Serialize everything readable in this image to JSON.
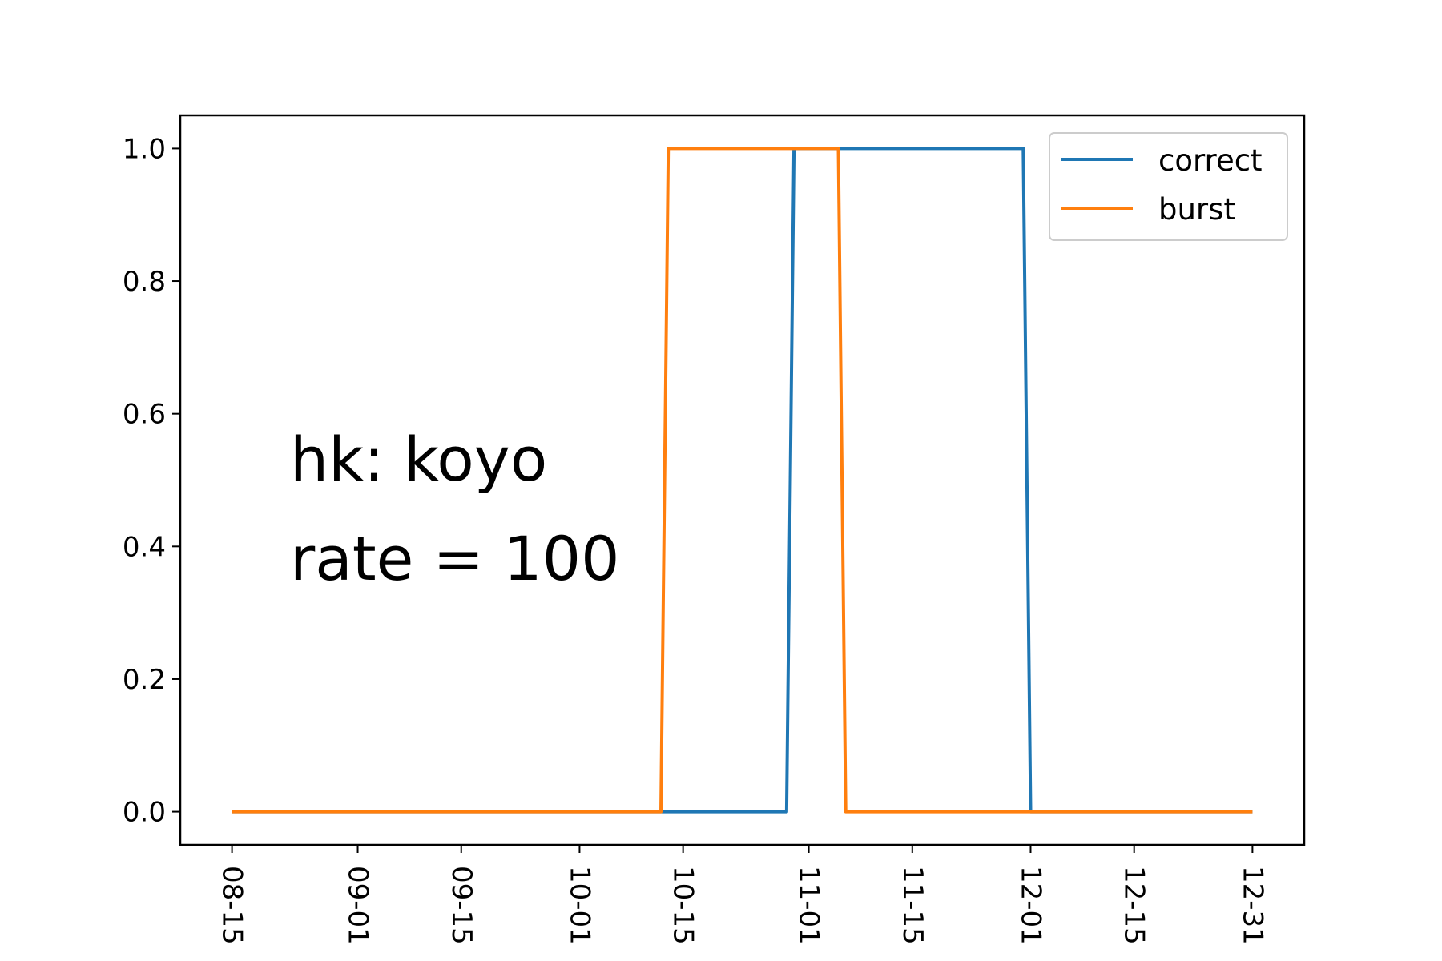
{
  "chart_data": {
    "type": "line",
    "x_type": "date",
    "x": [
      "2023-08-15",
      "2023-10-12",
      "2023-10-13",
      "2023-10-29",
      "2023-10-30",
      "2023-11-05",
      "2023-11-06",
      "2023-11-30",
      "2023-12-01",
      "2023-12-31"
    ],
    "series": [
      {
        "name": "correct",
        "color": "#1f77b4",
        "values": [
          0,
          0,
          0,
          0,
          1,
          1,
          1,
          1,
          0,
          0
        ]
      },
      {
        "name": "burst",
        "color": "#ff7f0e",
        "values": [
          0,
          0,
          1,
          1,
          1,
          1,
          0,
          0,
          0,
          0
        ]
      }
    ],
    "xticks": [
      "2023-08-15",
      "2023-09-01",
      "2023-09-15",
      "2023-10-01",
      "2023-10-15",
      "2023-11-01",
      "2023-11-15",
      "2023-12-01",
      "2023-12-15",
      "2023-12-31"
    ],
    "xtick_labels": [
      "08-15",
      "09-01",
      "09-15",
      "10-01",
      "10-15",
      "11-01",
      "11-15",
      "12-01",
      "12-15",
      "12-31"
    ],
    "xlim": [
      "2023-08-08",
      "2024-01-07"
    ],
    "yticks": [
      0.0,
      0.2,
      0.4,
      0.6,
      0.8,
      1.0
    ],
    "ytick_labels": [
      "0.0",
      "0.2",
      "0.4",
      "0.6",
      "0.8",
      "1.0"
    ],
    "ylim": [
      -0.05,
      1.05
    ],
    "annotations": [
      "hk: koyo",
      "rate = 100"
    ],
    "legend_position": "top-right",
    "grid": false,
    "title": "",
    "xlabel": "",
    "ylabel": ""
  }
}
